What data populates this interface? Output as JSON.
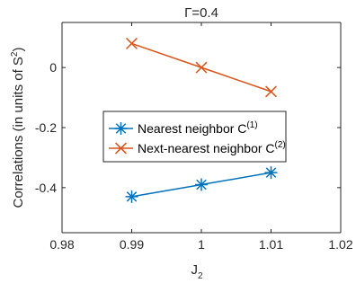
{
  "chart_data": {
    "type": "line",
    "title": "Γ=0.4",
    "xlabel": {
      "main": "J",
      "sub": "2"
    },
    "ylabel": {
      "main": "Correlations (in units of S",
      "sup": "2",
      "end": ")"
    },
    "xlim": [
      0.98,
      1.02
    ],
    "ylim": [
      -0.55,
      0.15
    ],
    "xticks": [
      0.98,
      0.99,
      1.0,
      1.01,
      1.02
    ],
    "xtick_labels": [
      "0.98",
      "0.99",
      "1",
      "1.01",
      "1.02"
    ],
    "yticks": [
      -0.4,
      -0.2,
      0
    ],
    "ytick_labels": [
      "-0.4",
      "-0.2",
      "0"
    ],
    "grid": false,
    "legend_position": "center-right",
    "series": [
      {
        "name": {
          "main": "Nearest neighbor C",
          "sup": "(1)"
        },
        "color": "#0072BD",
        "marker": "asterisk",
        "x": [
          0.99,
          1.0,
          1.01
        ],
        "y": [
          -0.43,
          -0.39,
          -0.35
        ]
      },
      {
        "name": {
          "main": "Next-nearest neighbor C",
          "sup": "(2)"
        },
        "color": "#D95319",
        "marker": "x",
        "x": [
          0.99,
          1.0,
          1.01
        ],
        "y": [
          0.08,
          0.0,
          -0.08
        ]
      }
    ]
  }
}
